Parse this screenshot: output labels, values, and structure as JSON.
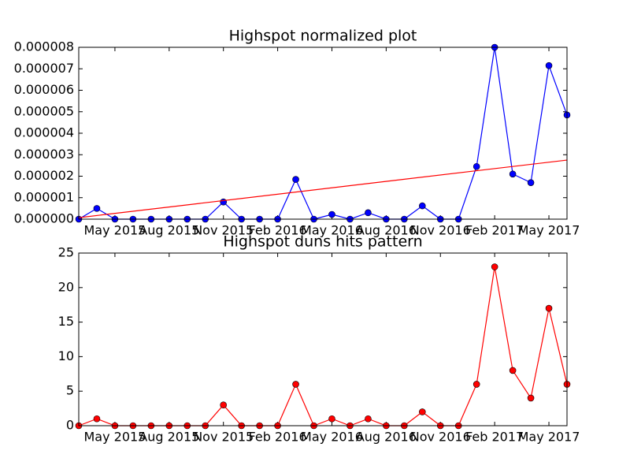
{
  "chart_data": [
    {
      "type": "line",
      "title": "Highspot normalized plot",
      "x": [
        "2015-03",
        "2015-04",
        "2015-05",
        "2015-06",
        "2015-07",
        "2015-08",
        "2015-09",
        "2015-10",
        "2015-11",
        "2015-12",
        "2016-01",
        "2016-02",
        "2016-03",
        "2016-04",
        "2016-05",
        "2016-06",
        "2016-07",
        "2016-08",
        "2016-09",
        "2016-10",
        "2016-11",
        "2016-12",
        "2017-01",
        "2017-02",
        "2017-03",
        "2017-04",
        "2017-05",
        "2017-06"
      ],
      "xlim": [
        "2015-03",
        "2017-06"
      ],
      "xticks": [
        {
          "value": "2015-05",
          "label": "May 2015"
        },
        {
          "value": "2015-08",
          "label": "Aug 2015"
        },
        {
          "value": "2015-11",
          "label": "Nov 2015"
        },
        {
          "value": "2016-02",
          "label": "Feb 2016"
        },
        {
          "value": "2016-05",
          "label": "May 2016"
        },
        {
          "value": "2016-08",
          "label": "Aug 2016"
        },
        {
          "value": "2016-11",
          "label": "Nov 2016"
        },
        {
          "value": "2017-02",
          "label": "Feb 2017"
        },
        {
          "value": "2017-05",
          "label": "May 2017"
        }
      ],
      "ylim": [
        0,
        8e-06
      ],
      "yticks": [
        {
          "value": 0,
          "label": "0.000000"
        },
        {
          "value": 1e-06,
          "label": "0.000001"
        },
        {
          "value": 2e-06,
          "label": "0.000002"
        },
        {
          "value": 3e-06,
          "label": "0.000003"
        },
        {
          "value": 4e-06,
          "label": "0.000004"
        },
        {
          "value": 5e-06,
          "label": "0.000005"
        },
        {
          "value": 6e-06,
          "label": "0.000006"
        },
        {
          "value": 7e-06,
          "label": "0.000007"
        },
        {
          "value": 8e-06,
          "label": "0.000008"
        }
      ],
      "series": [
        {
          "color": "#0000ff",
          "marker": true,
          "values": [
            0,
            5e-07,
            0,
            0,
            0,
            0,
            0,
            0,
            8e-07,
            0,
            0,
            0,
            1.85e-06,
            0,
            2.2e-07,
            0,
            3e-07,
            0,
            0,
            6.2e-07,
            0,
            0,
            2.45e-06,
            8e-06,
            2.1e-06,
            1.7e-06,
            7.15e-06,
            4.85e-06
          ]
        },
        {
          "color": "#ff0000",
          "marker": false,
          "x": [
            "2015-03",
            "2017-06"
          ],
          "values": [
            7e-08,
            2.75e-06
          ]
        }
      ]
    },
    {
      "type": "line",
      "title": "Highspot duns hits pattern",
      "x": [
        "2015-03",
        "2015-04",
        "2015-05",
        "2015-06",
        "2015-07",
        "2015-08",
        "2015-09",
        "2015-10",
        "2015-11",
        "2015-12",
        "2016-01",
        "2016-02",
        "2016-03",
        "2016-04",
        "2016-05",
        "2016-06",
        "2016-07",
        "2016-08",
        "2016-09",
        "2016-10",
        "2016-11",
        "2016-12",
        "2017-01",
        "2017-02",
        "2017-03",
        "2017-04",
        "2017-05",
        "2017-06"
      ],
      "xlim": [
        "2015-03",
        "2017-06"
      ],
      "xticks": [
        {
          "value": "2015-05",
          "label": "May 2015"
        },
        {
          "value": "2015-08",
          "label": "Aug 2015"
        },
        {
          "value": "2015-11",
          "label": "Nov 2015"
        },
        {
          "value": "2016-02",
          "label": "Feb 2016"
        },
        {
          "value": "2016-05",
          "label": "May 2016"
        },
        {
          "value": "2016-08",
          "label": "Aug 2016"
        },
        {
          "value": "2016-11",
          "label": "Nov 2016"
        },
        {
          "value": "2017-02",
          "label": "Feb 2017"
        },
        {
          "value": "2017-05",
          "label": "May 2017"
        }
      ],
      "ylim": [
        0,
        25
      ],
      "yticks": [
        0,
        5,
        10,
        15,
        20,
        25
      ],
      "series": [
        {
          "color": "#ff0000",
          "marker": true,
          "values": [
            0,
            1,
            0,
            0,
            0,
            0,
            0,
            0,
            3,
            0,
            0,
            0,
            6,
            0,
            1,
            0,
            1,
            0,
            0,
            2,
            0,
            0,
            6,
            23,
            8,
            4,
            17,
            6
          ]
        }
      ]
    }
  ]
}
